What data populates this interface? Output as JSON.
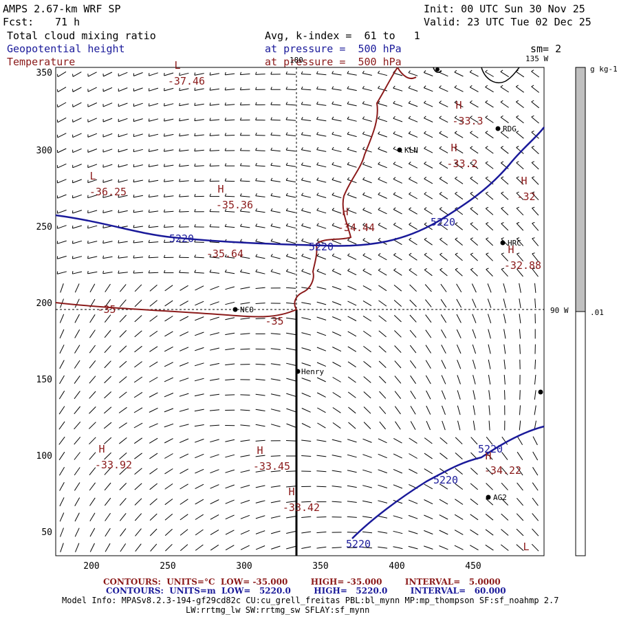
{
  "header": {
    "model": "AMPS 2.67-km WRF SP",
    "init": "Init: 00 UTC Sun 30 Nov 25",
    "fcst_label": "Fcst:",
    "fcst_value": "71 h",
    "valid": "Valid: 23 UTC Tue 02 Dec 25",
    "field1": "Total cloud mixing ratio",
    "field1_avg": "Avg, k-index =  61 to   1",
    "field2": "Geopotential height",
    "field2_level": "at pressure =  500 hPa",
    "field3": "Temperature",
    "field3_level": "at pressure =  500 hPa",
    "sm": "sm= 2"
  },
  "map": {
    "yticks": [
      "350",
      "300",
      "250",
      "200",
      "150",
      "100",
      "50"
    ],
    "xticks": [
      "200",
      "250",
      "300",
      "350",
      "400",
      "450"
    ],
    "meridian_labels": [
      "180",
      "135 W",
      "90 W"
    ],
    "stations": [
      {
        "name": "KLN"
      },
      {
        "name": "RDG"
      },
      {
        "name": "HRC"
      },
      {
        "name": "NCO"
      },
      {
        "name": "Henry"
      },
      {
        "name": "AG2"
      }
    ],
    "temperature_labels": [
      {
        "marker": "L",
        "value": "-37.46"
      },
      {
        "marker": "L",
        "value": "-36.25"
      },
      {
        "marker": "H",
        "value": "-35.36"
      },
      {
        "marker": "H",
        "value": "-34.44"
      },
      {
        "marker": "H",
        "value": "-33.3"
      },
      {
        "marker": "H",
        "value": "-33.2"
      },
      {
        "marker": "H",
        "value": "-32"
      },
      {
        "marker": "H",
        "value": "-32.88"
      },
      {
        "marker": "",
        "value": "-35.64"
      },
      {
        "marker": "",
        "value": "-35"
      },
      {
        "marker": "",
        "value": "-35"
      },
      {
        "marker": "H",
        "value": "-33.92"
      },
      {
        "marker": "H",
        "value": "-33.45"
      },
      {
        "marker": "H",
        "value": "-33.42"
      },
      {
        "marker": "H",
        "value": "-34.22"
      },
      {
        "marker": "L",
        "value": ""
      }
    ],
    "height_labels": [
      "5220",
      "5220",
      "5220",
      "5220",
      "5220",
      "5220"
    ]
  },
  "colorbar": {
    "unit": "g kg-1",
    "level": ".01",
    "fill_color": "#c0c0c0"
  },
  "footer": {
    "temp_contours": "CONTOURS:  UNITS=°C  LOW= -35.000        HIGH= -35.000        INTERVAL=   5.0000",
    "height_contours": "CONTOURS:  UNITS=m  LOW=   5220.0        HIGH=   5220.0        INTERVAL=   60.000",
    "model_info": "Model Info: MPASv8.2.3-194-gf29cd82c CU:cu_grell_freitas PBL:bl_mynn MP:mp_thompson SF:sf_noahmp 2.7",
    "model_info2": "LW:rrtmg_lw SW:rrtmg_sw SFLAY:sf_mynn"
  },
  "colors": {
    "temperature": "#8b1a1a",
    "height": "#1a1a9a"
  }
}
